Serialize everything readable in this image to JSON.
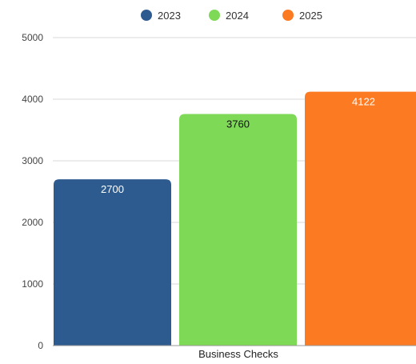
{
  "chart_data": {
    "type": "bar",
    "categories": [
      "Business Checks"
    ],
    "series": [
      {
        "name": "2023",
        "values": [
          2700
        ],
        "color": "#2e5b8f",
        "label_color": "#ffffff"
      },
      {
        "name": "2024",
        "values": [
          3760
        ],
        "color": "#7ed957",
        "label_color": "#111111"
      },
      {
        "name": "2025",
        "values": [
          4122
        ],
        "color": "#fb7a22",
        "label_color": "#ffffff"
      }
    ],
    "yticks": [
      "0",
      "1000",
      "2000",
      "3000",
      "4000",
      "5000"
    ],
    "ylim": [
      0,
      5000
    ],
    "grid": true,
    "legend_position": "top-center",
    "title": "",
    "xlabel": "",
    "ylabel": ""
  }
}
